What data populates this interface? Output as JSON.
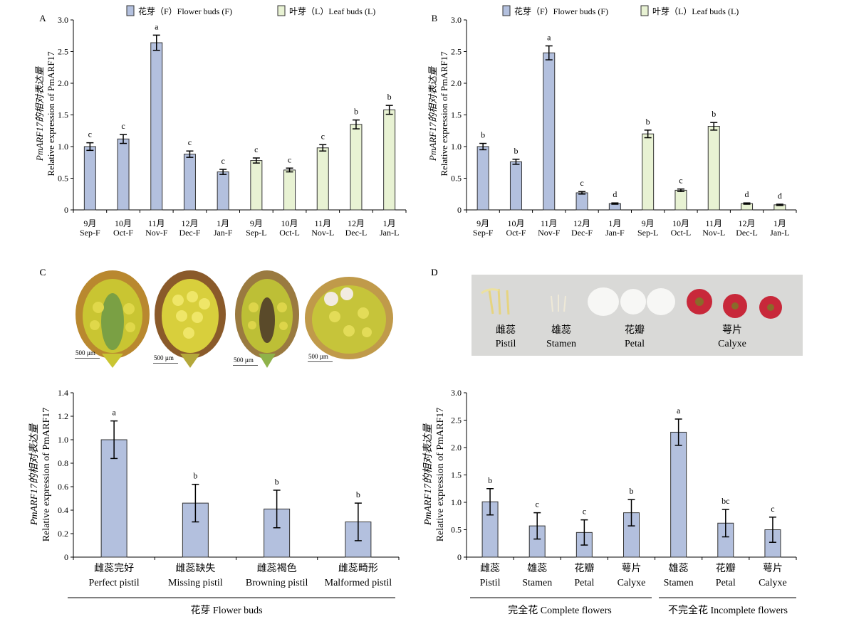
{
  "panels": {
    "A": {
      "label": "A"
    },
    "B": {
      "label": "B"
    },
    "C": {
      "label": "C",
      "scale_text": "500 µm"
    },
    "D": {
      "label": "D",
      "photo_labels": [
        {
          "zh": "雌蕊",
          "en": "Pistil"
        },
        {
          "zh": "雄蕊",
          "en": "Stamen"
        },
        {
          "zh": "花瓣",
          "en": "Petal"
        },
        {
          "zh": "萼片",
          "en": "Calyxe"
        }
      ]
    }
  },
  "colors": {
    "flower": "#b3c0de",
    "leaf": "#e8f2d3",
    "edge": "#333333"
  },
  "chart_data": [
    {
      "id": "A",
      "type": "bar",
      "legend": [
        "花芽（F）Flower buds (F)",
        "叶芽（L）Leaf buds (L)"
      ],
      "ylabel_zh": "PmARF17的相对表达量",
      "ylabel_en": "Relative expression of PmARF17",
      "ylim": [
        0,
        3.0
      ],
      "yticks": [
        "0",
        "0.5",
        "1.0",
        "1.5",
        "2.0",
        "2.5",
        "3.0"
      ],
      "categories_zh": [
        "9月",
        "10月",
        "11月",
        "12月",
        "1月",
        "9月",
        "10月",
        "11月",
        "12月",
        "1月"
      ],
      "categories": [
        "Sep-F",
        "Oct-F",
        "Nov-F",
        "Dec-F",
        "Jan-F",
        "Sep-L",
        "Oct-L",
        "Nov-L",
        "Dec-L",
        "Jan-L"
      ],
      "values": [
        1.0,
        1.12,
        2.64,
        0.88,
        0.6,
        0.78,
        0.63,
        0.98,
        1.35,
        1.58
      ],
      "errors": [
        0.06,
        0.07,
        0.12,
        0.05,
        0.04,
        0.04,
        0.03,
        0.05,
        0.07,
        0.07
      ],
      "letters": [
        "c",
        "c",
        "a",
        "c",
        "c",
        "c",
        "c",
        "c",
        "b",
        "b"
      ],
      "groups": [
        "F",
        "F",
        "F",
        "F",
        "F",
        "L",
        "L",
        "L",
        "L",
        "L"
      ]
    },
    {
      "id": "B",
      "type": "bar",
      "legend": [
        "花芽（F）Flower buds (F)",
        "叶芽（L）Leaf buds (L)"
      ],
      "ylabel_zh": "PmARF17的相对表达量",
      "ylabel_en": "Relative expression of PmARF17",
      "ylim": [
        0,
        3.0
      ],
      "yticks": [
        "0",
        "0.5",
        "1.0",
        "1.5",
        "2.0",
        "2.5",
        "3.0"
      ],
      "categories_zh": [
        "9月",
        "10月",
        "11月",
        "12月",
        "1月",
        "9月",
        "10月",
        "11月",
        "12月",
        "1月"
      ],
      "categories": [
        "Sep-F",
        "Oct-F",
        "Nov-F",
        "Dec-F",
        "Jan-F",
        "Sep-L",
        "Oct-L",
        "Nov-L",
        "Dec-L",
        "Jan-L"
      ],
      "values": [
        1.0,
        0.76,
        2.48,
        0.27,
        0.1,
        1.2,
        0.31,
        1.32,
        0.1,
        0.08
      ],
      "errors": [
        0.05,
        0.04,
        0.11,
        0.02,
        0.01,
        0.06,
        0.02,
        0.06,
        0.01,
        0.01
      ],
      "letters": [
        "b",
        "b",
        "a",
        "c",
        "d",
        "b",
        "c",
        "b",
        "d",
        "d"
      ],
      "groups": [
        "F",
        "F",
        "F",
        "F",
        "F",
        "L",
        "L",
        "L",
        "L",
        "L"
      ]
    },
    {
      "id": "C",
      "type": "bar",
      "ylabel_zh": "PmARF17的相对表达量",
      "ylabel_en": "Relative expression of PmARF17",
      "ylim": [
        0,
        1.4
      ],
      "yticks": [
        "0",
        "0.2",
        "0.4",
        "0.6",
        "0.8",
        "1.0",
        "1.2",
        "1.4"
      ],
      "categories_zh": [
        "雌蕊完好",
        "雌蕊缺失",
        "雌蕊褐色",
        "雌蕊畸形"
      ],
      "categories": [
        "Perfect pistil",
        "Missing pistil",
        "Browning pistil",
        "Malformed pistil"
      ],
      "values": [
        1.0,
        0.46,
        0.41,
        0.3
      ],
      "errors": [
        0.16,
        0.16,
        0.16,
        0.16
      ],
      "letters": [
        "a",
        "b",
        "b",
        "b"
      ],
      "groups": [
        "F",
        "F",
        "F",
        "F"
      ],
      "group_labels": [
        "花芽 Flower buds"
      ]
    },
    {
      "id": "D",
      "type": "bar",
      "ylabel_zh": "PmARF17的相对表达量",
      "ylabel_en": "Relative expression of PmARF17",
      "ylim": [
        0,
        3.0
      ],
      "yticks": [
        "0",
        "0.5",
        "1.0",
        "1.5",
        "2.0",
        "2.5",
        "3.0"
      ],
      "categories_zh": [
        "雌蕊",
        "雄蕊",
        "花瓣",
        "萼片",
        "雄蕊",
        "花瓣",
        "萼片"
      ],
      "categories": [
        "Pistil",
        "Stamen",
        "Petal",
        "Calyxe",
        "Stamen",
        "Petal",
        "Calyxe"
      ],
      "values": [
        1.01,
        0.57,
        0.45,
        0.81,
        2.28,
        0.62,
        0.5
      ],
      "errors": [
        0.24,
        0.24,
        0.23,
        0.24,
        0.24,
        0.25,
        0.23
      ],
      "letters": [
        "b",
        "c",
        "c",
        "b",
        "a",
        "bc",
        "c"
      ],
      "groups": [
        "F",
        "F",
        "F",
        "F",
        "F",
        "F",
        "F"
      ],
      "group_labels": [
        "完全花 Complete flowers",
        "不完全花 Incomplete flowers"
      ]
    }
  ]
}
